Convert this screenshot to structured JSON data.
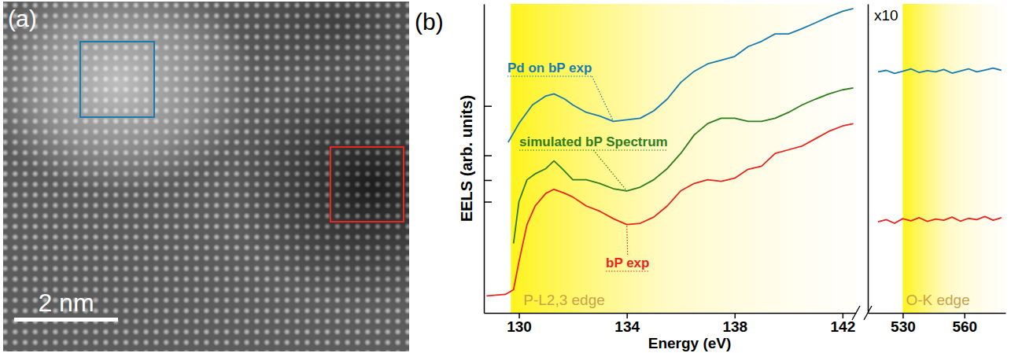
{
  "chart_data": [
    {
      "type": "image",
      "panel_label": "(a)",
      "scale_bar_label": "2 nm"
    },
    {
      "type": "line",
      "panel_label": "(b)",
      "y_label": "EELS (arb. units)",
      "x_label": "Energy (eV)",
      "xlim": [
        128.7,
        142.5
      ],
      "xticks": [
        130,
        134,
        138,
        142
      ],
      "ylim": [
        0,
        10
      ],
      "yticks": [
        3.6,
        4.3,
        5.1,
        6.7
      ],
      "tick_labels": "x",
      "series": [
        {
          "name": "Pd on bP exp",
          "color": "#1a7bb0",
          "x": [
            129.6,
            130.0,
            130.5,
            131.0,
            131.3,
            131.7,
            132.0,
            132.5,
            133.0,
            133.5,
            134.0,
            134.5,
            135.0,
            135.5,
            136.0,
            136.5,
            137.0,
            137.5,
            138.0,
            138.5,
            139.0,
            139.5,
            140.0,
            140.5,
            141.0,
            141.5,
            142.0,
            142.4
          ],
          "values": [
            5.52,
            6.13,
            6.73,
            7.02,
            7.09,
            6.92,
            6.73,
            6.49,
            6.37,
            6.2,
            6.25,
            6.3,
            6.54,
            6.92,
            7.46,
            7.82,
            8.06,
            8.18,
            8.3,
            8.62,
            8.79,
            9.03,
            9.03,
            9.2,
            9.39,
            9.59,
            9.76,
            9.85
          ]
        },
        {
          "name": "simulated bP Spectrum",
          "color": "#2f7d1e",
          "x": [
            129.8,
            130.0,
            130.3,
            130.6,
            131.0,
            131.3,
            131.6,
            132.0,
            132.5,
            133.0,
            133.5,
            134.0,
            134.5,
            135.0,
            135.5,
            136.0,
            136.5,
            137.0,
            137.5,
            138.0,
            138.5,
            139.0,
            139.5,
            140.0,
            140.5,
            141.0,
            141.5,
            142.0,
            142.4
          ],
          "values": [
            2.25,
            3.6,
            4.31,
            4.5,
            4.67,
            4.92,
            4.67,
            4.31,
            4.31,
            4.19,
            4.02,
            3.95,
            4.07,
            4.31,
            4.67,
            5.16,
            5.76,
            6.13,
            6.3,
            6.3,
            6.2,
            6.2,
            6.3,
            6.49,
            6.73,
            6.92,
            7.09,
            7.22,
            7.28
          ]
        },
        {
          "name": "bP exp",
          "color": "#e8251e",
          "x": [
            128.8,
            129.5,
            129.8,
            130.0,
            130.3,
            130.6,
            131.0,
            131.3,
            131.7,
            132.0,
            132.5,
            133.0,
            133.5,
            134.0,
            134.5,
            135.0,
            135.5,
            136.0,
            136.5,
            137.0,
            137.5,
            138.0,
            138.5,
            139.0,
            139.5,
            140.0,
            140.5,
            141.0,
            141.5,
            142.0,
            142.4
          ],
          "values": [
            0.55,
            0.6,
            0.75,
            1.65,
            2.86,
            3.46,
            3.87,
            4.0,
            3.87,
            3.75,
            3.46,
            3.29,
            3.05,
            2.86,
            2.9,
            3.1,
            3.46,
            3.95,
            4.19,
            4.31,
            4.26,
            4.36,
            4.65,
            4.75,
            5.16,
            5.28,
            5.4,
            5.64,
            5.88,
            6.05,
            6.12
          ]
        }
      ],
      "annotations": [
        {
          "text": "P-L2,3 edge",
          "x": 129.7
        }
      ]
    },
    {
      "type": "line",
      "xlim": [
        513,
        580
      ],
      "xticks": [
        530,
        560
      ],
      "ylim": [
        0,
        10
      ],
      "yticks": [],
      "tick_labels": "x",
      "series": [
        {
          "color": "#1a7bb0",
          "x": [
            518,
            522,
            526,
            530,
            534,
            538,
            542,
            546,
            550,
            554,
            558,
            562,
            566,
            570,
            574,
            578
          ],
          "values": [
            7.8,
            7.85,
            7.75,
            7.82,
            7.9,
            7.78,
            7.84,
            7.8,
            7.88,
            7.76,
            7.83,
            7.9,
            7.8,
            7.86,
            7.92,
            7.85
          ]
        },
        {
          "color": "#e8251e",
          "x": [
            518,
            522,
            526,
            530,
            534,
            538,
            542,
            546,
            550,
            554,
            558,
            562,
            566,
            570,
            574,
            578
          ],
          "values": [
            2.95,
            3.02,
            2.9,
            3.05,
            2.98,
            3.08,
            2.96,
            3.04,
            3.0,
            3.1,
            2.97,
            3.06,
            3.02,
            3.12,
            3.0,
            3.08
          ]
        }
      ],
      "annotations": [
        {
          "text": "x10"
        },
        {
          "text": "O-K edge",
          "x": 530
        }
      ]
    }
  ]
}
